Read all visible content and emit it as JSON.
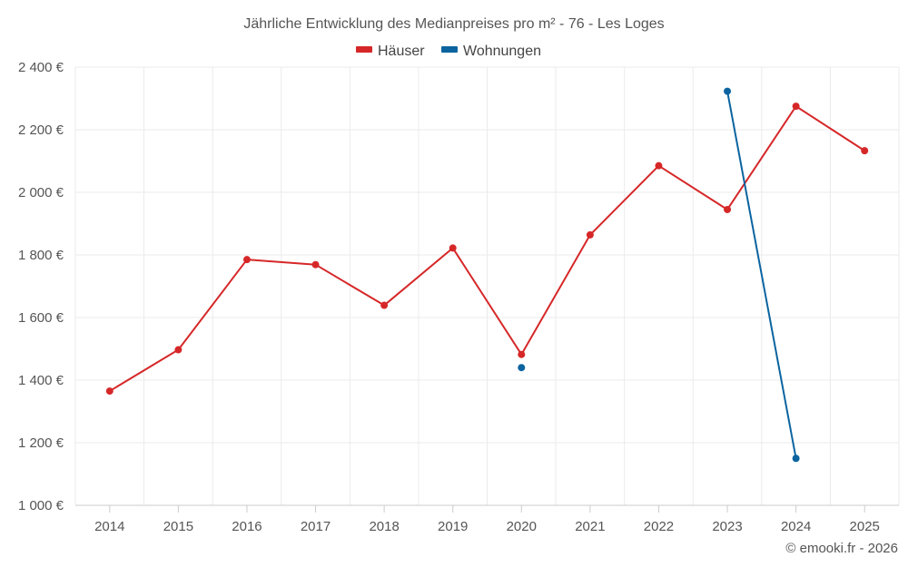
{
  "chart_data": {
    "type": "line",
    "title": "Jährliche Entwicklung des Medianpreises pro m² - 76 - Les Loges",
    "categories": [
      "2014",
      "2015",
      "2016",
      "2017",
      "2018",
      "2019",
      "2020",
      "2021",
      "2022",
      "2023",
      "2024",
      "2025"
    ],
    "y_ticks": [
      "1 000 €",
      "1 200 €",
      "1 400 €",
      "1 600 €",
      "1 800 €",
      "2 000 €",
      "2 200 €",
      "2 400 €"
    ],
    "y_tick_values": [
      1000,
      1200,
      1400,
      1600,
      1800,
      2000,
      2200,
      2400
    ],
    "ylim": [
      1000,
      2400
    ],
    "series": [
      {
        "name": "Häuser",
        "color": "#d62728",
        "values": [
          1365,
          1497,
          1785,
          1769,
          1639,
          1822,
          1482,
          1864,
          2085,
          1945,
          2275,
          2133
        ]
      },
      {
        "name": "Wohnungen",
        "color": "#0b64a0",
        "values": [
          null,
          null,
          null,
          null,
          null,
          null,
          1440,
          null,
          null,
          2323,
          1150,
          null
        ]
      }
    ],
    "legend_position": "top-center",
    "grid": true
  },
  "credit": "© emooki.fr - 2026"
}
